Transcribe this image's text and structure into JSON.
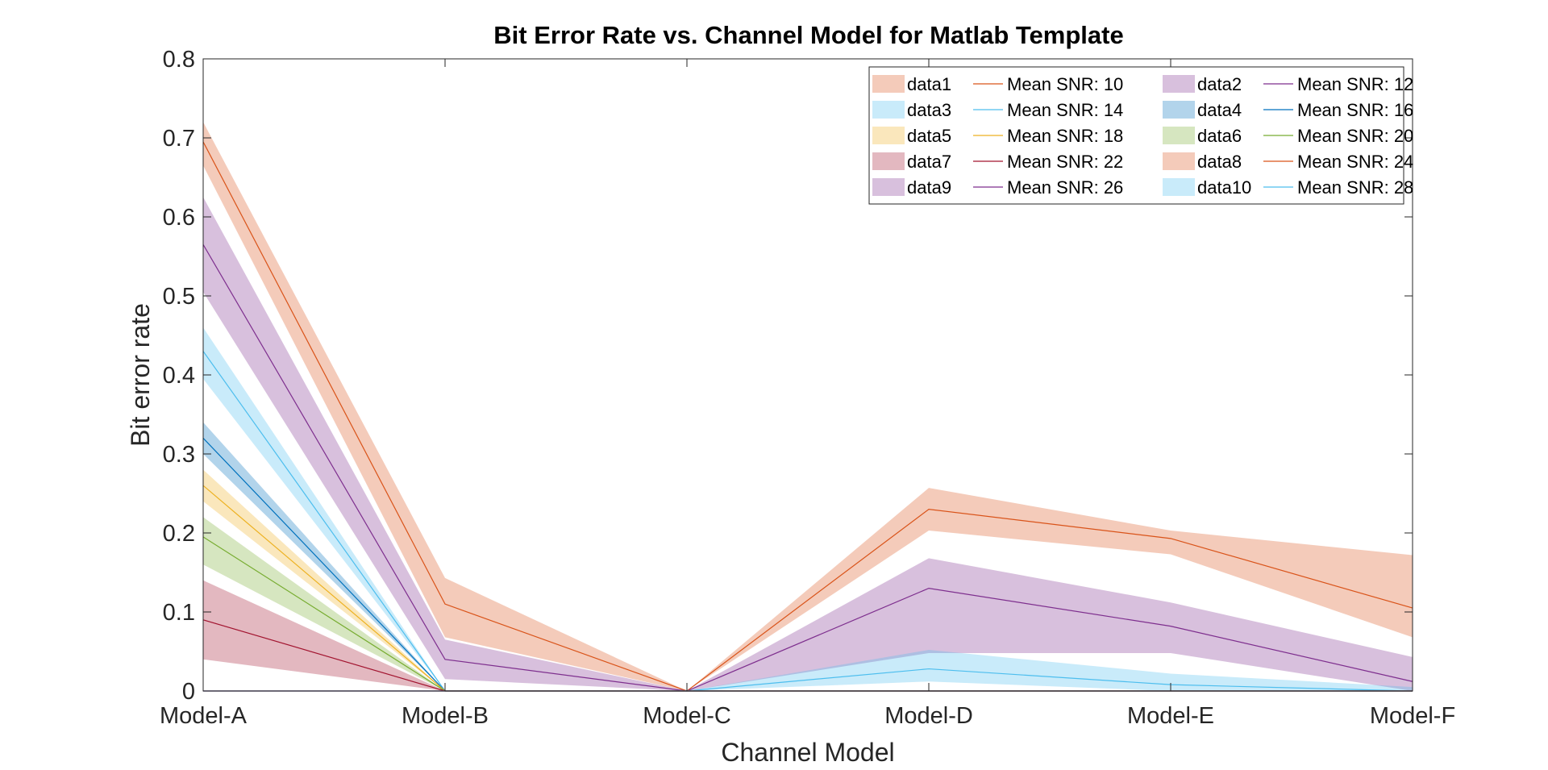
{
  "chart_data": {
    "type": "area",
    "title": "Bit Error Rate vs. Channel Model for Matlab Template",
    "xlabel": "Channel Model",
    "ylabel": "Bit error rate",
    "categories": [
      "Model-A",
      "Model-B",
      "Model-C",
      "Model-D",
      "Model-E",
      "Model-F"
    ],
    "ylim": [
      0,
      0.8
    ],
    "yticks": [
      0,
      0.1,
      0.2,
      0.3,
      0.4,
      0.5,
      0.6,
      0.7,
      0.8
    ],
    "ytick_labels": [
      "0",
      "0.1",
      "0.2",
      "0.3",
      "0.4",
      "0.5",
      "0.6",
      "0.7",
      "0.8"
    ],
    "grid": false,
    "legend_position": "top-right",
    "series": [
      {
        "band_name": "data1",
        "line_name": "Mean SNR: 10",
        "color": "#D95319",
        "mean": [
          0.695,
          0.11,
          0,
          0.23,
          0.193,
          0.105
        ],
        "upper": [
          0.72,
          0.143,
          0,
          0.257,
          0.203,
          0.172
        ],
        "lower": [
          0.665,
          0.068,
          0,
          0.203,
          0.173,
          0.068
        ]
      },
      {
        "band_name": "data2",
        "line_name": "Mean SNR: 12",
        "color": "#7E2F8E",
        "mean": [
          0.565,
          0.04,
          0,
          0.13,
          0.082,
          0.012
        ],
        "upper": [
          0.625,
          0.065,
          0,
          0.168,
          0.112,
          0.043
        ],
        "lower": [
          0.505,
          0.015,
          0,
          0.048,
          0.048,
          0
        ]
      },
      {
        "band_name": "data3",
        "line_name": "Mean SNR: 14",
        "color": "#4DBEEE",
        "mean": [
          0.43,
          0,
          0,
          0.028,
          0.008,
          0
        ],
        "upper": [
          0.46,
          0,
          0,
          0.052,
          0.022,
          0.005
        ],
        "lower": [
          0.395,
          0,
          0,
          0.012,
          0,
          0
        ]
      },
      {
        "band_name": "data4",
        "line_name": "Mean SNR: 16",
        "color": "#0072BD",
        "mean": [
          0.32,
          0,
          0,
          0,
          0,
          0
        ],
        "upper": [
          0.34,
          0,
          0,
          0,
          0,
          0
        ],
        "lower": [
          0.3,
          0,
          0,
          0,
          0,
          0
        ]
      },
      {
        "band_name": "data5",
        "line_name": "Mean SNR: 18",
        "color": "#EDB120",
        "mean": [
          0.26,
          0,
          0,
          0,
          0,
          0
        ],
        "upper": [
          0.28,
          0,
          0,
          0,
          0,
          0
        ],
        "lower": [
          0.24,
          0,
          0,
          0,
          0,
          0
        ]
      },
      {
        "band_name": "data6",
        "line_name": "Mean SNR: 20",
        "color": "#77AC30",
        "mean": [
          0.195,
          0,
          0,
          0,
          0,
          0
        ],
        "upper": [
          0.22,
          0,
          0,
          0,
          0,
          0
        ],
        "lower": [
          0.16,
          0,
          0,
          0,
          0,
          0
        ]
      },
      {
        "band_name": "data7",
        "line_name": "Mean SNR: 22",
        "color": "#A2142F",
        "mean": [
          0.09,
          0,
          0,
          0,
          0,
          0
        ],
        "upper": [
          0.14,
          0,
          0,
          0,
          0,
          0
        ],
        "lower": [
          0.04,
          0,
          0,
          0,
          0,
          0
        ]
      },
      {
        "band_name": "data8",
        "line_name": "Mean SNR: 24",
        "color": "#D95319",
        "mean": [
          0,
          0,
          0,
          0,
          0,
          0
        ],
        "upper": [
          0,
          0,
          0,
          0,
          0,
          0
        ],
        "lower": [
          0,
          0,
          0,
          0,
          0,
          0
        ]
      },
      {
        "band_name": "data9",
        "line_name": "Mean SNR: 26",
        "color": "#7E2F8E",
        "mean": [
          0,
          0,
          0,
          0,
          0,
          0
        ],
        "upper": [
          0,
          0,
          0,
          0,
          0,
          0
        ],
        "lower": [
          0,
          0,
          0,
          0,
          0,
          0
        ]
      },
      {
        "band_name": "data10",
        "line_name": "Mean SNR: 28",
        "color": "#4DBEEE",
        "mean": [
          0,
          0,
          0,
          0,
          0,
          0
        ],
        "upper": [
          0,
          0,
          0,
          0,
          0,
          0
        ],
        "lower": [
          0,
          0,
          0,
          0,
          0,
          0
        ]
      }
    ]
  }
}
